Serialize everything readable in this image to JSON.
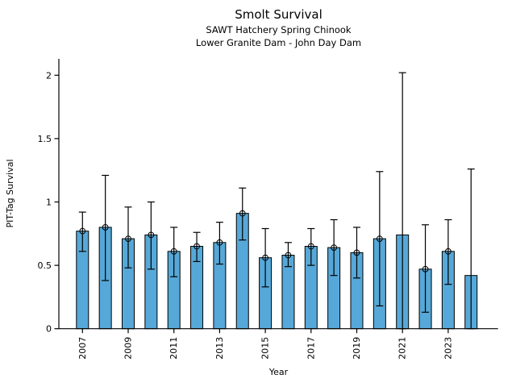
{
  "header": {
    "title": "Smolt Survival",
    "subtitle1": "SAWT Hatchery Spring Chinook",
    "subtitle2": "Lower Granite Dam - John Day Dam"
  },
  "chart_data": {
    "type": "bar",
    "title": "Smolt Survival",
    "subtitle1": "SAWT Hatchery Spring Chinook",
    "subtitle2": "Lower Granite Dam - John Day Dam",
    "xlabel": "Year",
    "ylabel": "PIT-Tag Survival",
    "ylim": [
      0,
      2.12
    ],
    "yticks": [
      0,
      0.5,
      1,
      1.5,
      2
    ],
    "ytick_labels": [
      "0",
      "0.5",
      "1",
      "1.5",
      "2"
    ],
    "xtick_years": [
      2007,
      2009,
      2011,
      2013,
      2015,
      2017,
      2019,
      2021,
      2023
    ],
    "grid": false,
    "legend": "none",
    "bar_color": "#56A8D8",
    "bar_edge_color": "#000000",
    "error_color": "#000000",
    "series": [
      {
        "year": 2007,
        "value": 0.77,
        "lo": 0.61,
        "hi": 0.92,
        "marker": true
      },
      {
        "year": 2008,
        "value": 0.8,
        "lo": 0.38,
        "hi": 1.21,
        "marker": true
      },
      {
        "year": 2009,
        "value": 0.71,
        "lo": 0.48,
        "hi": 0.96,
        "marker": true
      },
      {
        "year": 2010,
        "value": 0.74,
        "lo": 0.47,
        "hi": 1.0,
        "marker": true
      },
      {
        "year": 2011,
        "value": 0.61,
        "lo": 0.41,
        "hi": 0.8,
        "marker": true
      },
      {
        "year": 2012,
        "value": 0.65,
        "lo": 0.53,
        "hi": 0.76,
        "marker": true
      },
      {
        "year": 2013,
        "value": 0.68,
        "lo": 0.51,
        "hi": 0.84,
        "marker": true
      },
      {
        "year": 2014,
        "value": 0.91,
        "lo": 0.7,
        "hi": 1.11,
        "marker": true
      },
      {
        "year": 2015,
        "value": 0.56,
        "lo": 0.33,
        "hi": 0.79,
        "marker": true
      },
      {
        "year": 2016,
        "value": 0.58,
        "lo": 0.49,
        "hi": 0.68,
        "marker": true
      },
      {
        "year": 2017,
        "value": 0.65,
        "lo": 0.5,
        "hi": 0.79,
        "marker": true
      },
      {
        "year": 2018,
        "value": 0.64,
        "lo": 0.42,
        "hi": 0.86,
        "marker": true
      },
      {
        "year": 2019,
        "value": 0.6,
        "lo": 0.4,
        "hi": 0.8,
        "marker": true
      },
      {
        "year": 2020,
        "value": 0.71,
        "lo": 0.18,
        "hi": 1.24,
        "marker": true
      },
      {
        "year": 2021,
        "value": 0.74,
        "lo": 0.0,
        "hi": 2.02,
        "marker": false
      },
      {
        "year": 2022,
        "value": 0.47,
        "lo": 0.13,
        "hi": 0.82,
        "marker": true
      },
      {
        "year": 2023,
        "value": 0.61,
        "lo": 0.35,
        "hi": 0.86,
        "marker": true
      },
      {
        "year": 2024,
        "value": 0.42,
        "lo": 0.0,
        "hi": 1.26,
        "marker": false
      }
    ]
  }
}
